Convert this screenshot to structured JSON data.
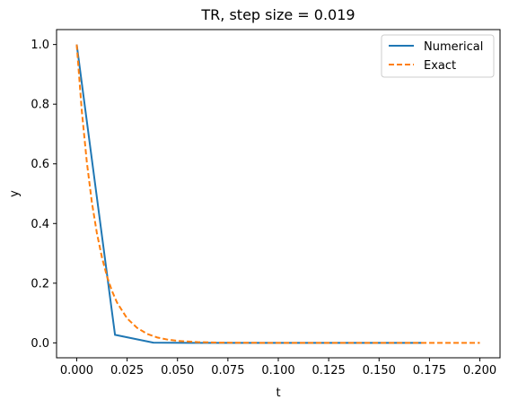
{
  "chart_data": {
    "type": "line",
    "title": "TR, step size = 0.019",
    "xlabel": "t",
    "ylabel": "y",
    "xlim": [
      -0.01,
      0.21
    ],
    "ylim": [
      -0.05,
      1.05
    ],
    "x_ticks": [
      "0.000",
      "0.025",
      "0.050",
      "0.075",
      "0.100",
      "0.125",
      "0.150",
      "0.175",
      "0.200"
    ],
    "x_tick_values": [
      0,
      0.025,
      0.05,
      0.075,
      0.1,
      0.125,
      0.15,
      0.175,
      0.2
    ],
    "y_ticks": [
      "0.0",
      "0.2",
      "0.4",
      "0.6",
      "0.8",
      "1.0"
    ],
    "y_tick_values": [
      0,
      0.2,
      0.4,
      0.6,
      0.8,
      1.0
    ],
    "grid": false,
    "legend_position": "top-right",
    "series": [
      {
        "name": "Numerical",
        "color": "#1f77b4",
        "style": "solid",
        "x": [
          0,
          0.019,
          0.038,
          0.057,
          0.076,
          0.095,
          0.114,
          0.133,
          0.152,
          0.171
        ],
        "y": [
          1.0,
          0.027,
          0.0007,
          0.0,
          0.0,
          0.0,
          0.0,
          0.0,
          0.0,
          0.0
        ]
      },
      {
        "name": "Exact",
        "color": "#ff7f0e",
        "style": "dashed",
        "x": [
          0,
          0.0025,
          0.005,
          0.0075,
          0.01,
          0.0125,
          0.015,
          0.0175,
          0.02,
          0.025,
          0.03,
          0.035,
          0.04,
          0.045,
          0.05,
          0.06,
          0.07,
          0.08,
          0.1,
          0.12,
          0.14,
          0.16,
          0.18,
          0.2
        ],
        "y": [
          1.0,
          0.779,
          0.607,
          0.472,
          0.368,
          0.287,
          0.223,
          0.174,
          0.135,
          0.082,
          0.05,
          0.03,
          0.018,
          0.011,
          0.0067,
          0.0025,
          0.0009,
          0.0003,
          0.0,
          0.0,
          0.0,
          0.0,
          0.0,
          0.0
        ]
      }
    ]
  }
}
